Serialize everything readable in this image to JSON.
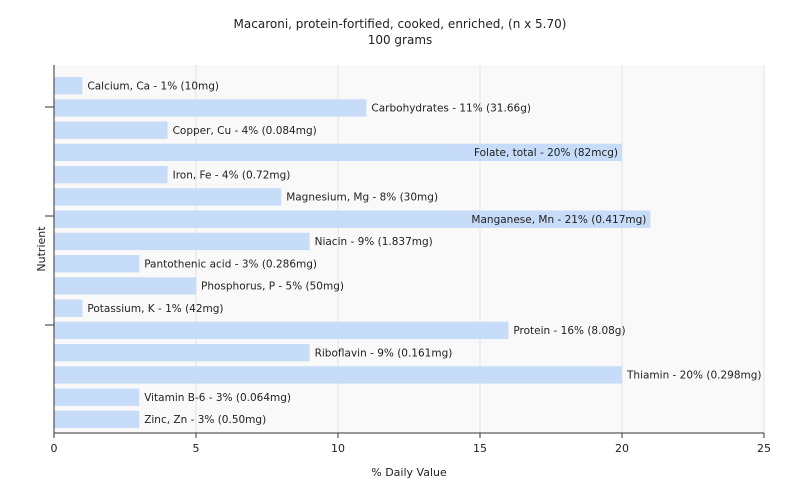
{
  "chart_data": {
    "type": "bar",
    "orientation": "horizontal",
    "title": "Macaroni, protein-fortified, cooked, enriched, (n x 5.70)",
    "subtitle": "100 grams",
    "xlabel": "% Daily Value",
    "ylabel": "Nutrient",
    "xlim": [
      0,
      25
    ],
    "xticks": [
      "0",
      "5",
      "10",
      "15",
      "20",
      "25"
    ],
    "grid": true,
    "bar_color": "#c6dcf8",
    "categories": [
      "Calcium, Ca - 1% (10mg)",
      "Carbohydrates - 11% (31.66g)",
      "Copper, Cu - 4% (0.084mg)",
      "Folate, total - 20% (82mcg)",
      "Iron, Fe - 4% (0.72mg)",
      "Magnesium, Mg - 8% (30mg)",
      "Manganese, Mn - 21% (0.417mg)",
      "Niacin - 9% (1.837mg)",
      "Pantothenic acid - 3% (0.286mg)",
      "Phosphorus, P - 5% (50mg)",
      "Potassium, K - 1% (42mg)",
      "Protein - 16% (8.08g)",
      "Riboflavin - 9% (0.161mg)",
      "Thiamin - 20% (0.298mg)",
      "Vitamin B-6 - 3% (0.064mg)",
      "Zinc, Zn - 3% (0.50mg)"
    ],
    "values": [
      1,
      11,
      4,
      20,
      4,
      8,
      21,
      9,
      3,
      5,
      1,
      16,
      9,
      20,
      3,
      3
    ]
  }
}
